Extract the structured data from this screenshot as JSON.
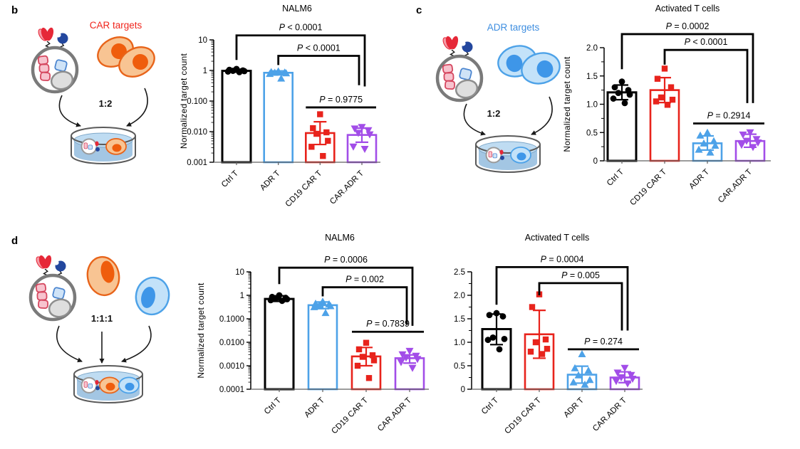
{
  "panels": {
    "b": {
      "letter": "b",
      "targets_label": "CAR targets",
      "ratio": "1:2",
      "target_cells": "orange"
    },
    "c": {
      "letter": "c",
      "targets_label": "ADR targets",
      "ratio": "1:2",
      "target_cells": "blue"
    },
    "d": {
      "letter": "d",
      "ratio": "1:1:1",
      "target_cells": "orange+blue"
    }
  },
  "colors": {
    "black": "#000000",
    "blue": "#4DA2E8",
    "red": "#E8231C",
    "purple": "#A24DE8",
    "car_label": "#F0251C",
    "adr_label": "#3E8EE0",
    "axis_gray": "#606060",
    "cell_outline_gray": "#7a7a7a",
    "orange_cell_fill": "#F8C493",
    "orange_cell_stroke": "#E8641A",
    "orange_nucleus": "#EF5D0D",
    "blue_cell_fill": "#C3E2F9",
    "blue_cell_stroke": "#4DA2E8",
    "blue_nucleus": "#3E96E8",
    "pink_chain_fill": "#F7C3CE",
    "pink_chain_stroke": "#D5475F",
    "blue_box_fill": "#CFE3F7",
    "blue_box_stroke": "#4C86D0",
    "nucleus_gray_fill": "#DEDEDE",
    "nucleus_gray_stroke": "#8E8E8E",
    "receptor_red": "#E62838",
    "receptor_red_light": "#F59CA8",
    "receptor_navy": "#23479E",
    "dish_stroke": "#5a5a5a",
    "liquid_body": "#A3C6E3",
    "liquid_surface": "#BFDCF2"
  },
  "chart_data": [
    {
      "panel": "b",
      "type": "bar",
      "title": "NALM6",
      "ylabel": "Normalized target count",
      "scale": "log",
      "ylim": [
        0.001,
        10
      ],
      "grid": false,
      "legend": "none",
      "yticks": [
        {
          "v": 10,
          "label": "10"
        },
        {
          "v": 1,
          "label": "1"
        },
        {
          "v": 0.1,
          "label": "0.100"
        },
        {
          "v": 0.01,
          "label": "0.010"
        },
        {
          "v": 0.001,
          "label": "0.001"
        }
      ],
      "categories": [
        "Ctrl T",
        "ADR T",
        "CD19 CAR T",
        "CAR.ADR T"
      ],
      "series": [
        {
          "label": "Ctrl T",
          "color": "black",
          "marker": "circle",
          "value": 0.97,
          "err": [
            0.88,
            1.1
          ],
          "points": [
            1.12,
            1.05,
            1.0,
            0.97,
            0.95,
            0.92,
            0.88
          ]
        },
        {
          "label": "ADR T",
          "color": "blue",
          "marker": "triangle-up",
          "value": 0.84,
          "err": [
            0.72,
            0.96
          ],
          "points": [
            0.95,
            0.9,
            0.87,
            0.85,
            0.82,
            0.78,
            0.55
          ]
        },
        {
          "label": "CD19 CAR T",
          "color": "red",
          "marker": "square",
          "value": 0.009,
          "err": [
            0.0038,
            0.021
          ],
          "points": [
            0.037,
            0.013,
            0.0095,
            0.0085,
            0.005,
            0.0032,
            0.0016
          ]
        },
        {
          "label": "CAR.ADR T",
          "color": "purple",
          "marker": "triangle-down",
          "value": 0.0078,
          "err": [
            0.0045,
            0.013
          ],
          "points": [
            0.014,
            0.0125,
            0.011,
            0.009,
            0.008,
            0.0032,
            0.0027
          ]
        }
      ],
      "comparisons": [
        {
          "from": 0,
          "to": 3,
          "label": "P < 0.0001",
          "style": "bracket",
          "y": 14,
          "drop_from": 2.2,
          "drop_to": 0.3,
          "off_to": 4
        },
        {
          "from": 1,
          "to": 3,
          "label": "P < 0.0001",
          "style": "bracket",
          "y": 3.0,
          "drop_from": 1.5,
          "drop_to": 0.33,
          "off_to": -4
        },
        {
          "from": 2,
          "to": 3,
          "label": "P = 0.9775",
          "style": "line",
          "y": 0.062
        }
      ]
    },
    {
      "panel": "c",
      "type": "bar",
      "title": "Activated T cells",
      "ylabel": "Normalized target count",
      "scale": "linear",
      "ylim": [
        0,
        2.0
      ],
      "grid": false,
      "legend": "none",
      "yticks": [
        {
          "v": 2.0,
          "label": "2.0"
        },
        {
          "v": 1.5,
          "label": "1.5"
        },
        {
          "v": 1.0,
          "label": "1.0"
        },
        {
          "v": 0.5,
          "label": "0.5"
        },
        {
          "v": 0,
          "label": "0"
        }
      ],
      "categories": [
        "Ctrl T",
        "CD19 CAR T",
        "ADR T",
        "CAR.ADR T"
      ],
      "series": [
        {
          "label": "Ctrl T",
          "color": "black",
          "marker": "circle",
          "value": 1.21,
          "err": [
            1.08,
            1.34
          ],
          "points": [
            1.4,
            1.3,
            1.25,
            1.2,
            1.17,
            1.1,
            1.02
          ]
        },
        {
          "label": "CD19 CAR T",
          "color": "red",
          "marker": "square",
          "value": 1.25,
          "err": [
            1.03,
            1.47
          ],
          "points": [
            1.63,
            1.45,
            1.3,
            1.12,
            1.08,
            1.05,
            0.99
          ]
        },
        {
          "label": "ADR T",
          "color": "blue",
          "marker": "triangle-up",
          "value": 0.31,
          "err": [
            0.19,
            0.44
          ],
          "points": [
            0.5,
            0.45,
            0.35,
            0.31,
            0.27,
            0.2,
            0.15
          ]
        },
        {
          "label": "CAR.ADR T",
          "color": "purple",
          "marker": "triangle-down",
          "value": 0.35,
          "err": [
            0.24,
            0.47
          ],
          "points": [
            0.5,
            0.46,
            0.38,
            0.35,
            0.32,
            0.28,
            0.24
          ]
        }
      ],
      "comparisons": [
        {
          "from": 0,
          "to": 3,
          "label": "P = 0.0002",
          "style": "bracket",
          "y": 2.24,
          "drop_from": 1.62,
          "drop_to": 1.02,
          "off_to": 4
        },
        {
          "from": 1,
          "to": 3,
          "label": "P < 0.0001",
          "style": "bracket",
          "y": 1.96,
          "drop_from": 1.7,
          "drop_to": 1.02,
          "off_to": -4
        },
        {
          "from": 2,
          "to": 3,
          "label": "P = 0.2914",
          "style": "line",
          "y": 0.66
        }
      ]
    },
    {
      "panel": "d",
      "type": "bar",
      "title": "NALM6",
      "ylabel": "Normalized target count",
      "scale": "log",
      "ylim": [
        0.0001,
        10
      ],
      "grid": false,
      "legend": "none",
      "yticks": [
        {
          "v": 10,
          "label": "10"
        },
        {
          "v": 1,
          "label": "1"
        },
        {
          "v": 0.1,
          "label": "0.1000"
        },
        {
          "v": 0.01,
          "label": "0.0100"
        },
        {
          "v": 0.001,
          "label": "0.0010"
        },
        {
          "v": 0.0001,
          "label": "0.0001"
        }
      ],
      "categories": [
        "Ctrl T",
        "ADR T",
        "CD19 CAR T",
        "CAR.ADR T"
      ],
      "series": [
        {
          "label": "Ctrl T",
          "color": "black",
          "marker": "circle",
          "value": 0.7,
          "err": [
            0.55,
            0.95
          ],
          "points": [
            1.0,
            0.85,
            0.78,
            0.72,
            0.68,
            0.62,
            0.58
          ]
        },
        {
          "label": "ADR T",
          "color": "blue",
          "marker": "triangle-up",
          "value": 0.38,
          "err": [
            0.27,
            0.52
          ],
          "points": [
            0.55,
            0.45,
            0.42,
            0.38,
            0.35,
            0.32,
            0.18
          ]
        },
        {
          "label": "CD19 CAR T",
          "color": "red",
          "marker": "square",
          "value": 0.0025,
          "err": [
            0.001,
            0.006
          ],
          "points": [
            0.0095,
            0.005,
            0.0028,
            0.0024,
            0.0017,
            0.001,
            0.0003
          ]
        },
        {
          "label": "CAR.ADR T",
          "color": "purple",
          "marker": "triangle-down",
          "value": 0.0021,
          "err": [
            0.0013,
            0.0029
          ],
          "points": [
            0.0042,
            0.003,
            0.0026,
            0.0022,
            0.0019,
            0.0014,
            0.0008
          ]
        }
      ],
      "comparisons": [
        {
          "from": 0,
          "to": 3,
          "label": "P = 0.0006",
          "style": "bracket",
          "y": 15,
          "drop_from": 3.0,
          "drop_to": 0.05,
          "off_to": 4
        },
        {
          "from": 1,
          "to": 3,
          "label": "P = 0.002",
          "style": "bracket",
          "y": 2.2,
          "drop_from": 0.9,
          "drop_to": 0.055,
          "off_to": -4
        },
        {
          "from": 2,
          "to": 3,
          "label": "P = 0.7839",
          "style": "line",
          "y": 0.028
        }
      ]
    },
    {
      "panel": "d",
      "type": "bar",
      "title": "Activated T cells",
      "ylabel": "",
      "scale": "linear",
      "ylim": [
        0,
        2.5
      ],
      "grid": false,
      "legend": "none",
      "yticks": [
        {
          "v": 2.5,
          "label": "2.5"
        },
        {
          "v": 2.0,
          "label": "2.0"
        },
        {
          "v": 1.5,
          "label": "1.5"
        },
        {
          "v": 1.0,
          "label": "1.0"
        },
        {
          "v": 0.5,
          "label": "0.5"
        },
        {
          "v": 0,
          "label": "0"
        }
      ],
      "categories": [
        "Ctrl T",
        "CD19 CAR T",
        "ADR T",
        "CAR.ADR T"
      ],
      "series": [
        {
          "label": "Ctrl T",
          "color": "black",
          "marker": "circle",
          "value": 1.28,
          "err": [
            0.95,
            1.6
          ],
          "points": [
            1.62,
            1.58,
            1.55,
            1.1,
            1.07,
            1.05,
            0.85
          ]
        },
        {
          "label": "CD19 CAR T",
          "color": "red",
          "marker": "square",
          "value": 1.17,
          "err": [
            0.66,
            1.68
          ],
          "points": [
            2.02,
            1.75,
            1.06,
            1.0,
            0.86,
            0.8,
            0.75
          ]
        },
        {
          "label": "ADR T",
          "color": "blue",
          "marker": "triangle-up",
          "value": 0.31,
          "err": [
            0.13,
            0.49
          ],
          "points": [
            0.75,
            0.45,
            0.4,
            0.3,
            0.2,
            0.15,
            0.1
          ]
        },
        {
          "label": "CAR.ADR T",
          "color": "purple",
          "marker": "triangle-down",
          "value": 0.25,
          "err": [
            0.14,
            0.37
          ],
          "points": [
            0.45,
            0.35,
            0.3,
            0.25,
            0.22,
            0.17,
            0.12
          ]
        }
      ],
      "comparisons": [
        {
          "from": 0,
          "to": 3,
          "label": "P = 0.0004",
          "style": "bracket",
          "y": 2.6,
          "drop_from": 1.8,
          "drop_to": 1.25,
          "off_to": 4
        },
        {
          "from": 1,
          "to": 3,
          "label": "P = 0.005",
          "style": "bracket",
          "y": 2.26,
          "drop_from": 2.0,
          "drop_to": 1.25,
          "off_to": -4
        },
        {
          "from": 2,
          "to": 3,
          "label": "P = 0.274",
          "style": "line",
          "y": 0.85
        }
      ]
    }
  ]
}
